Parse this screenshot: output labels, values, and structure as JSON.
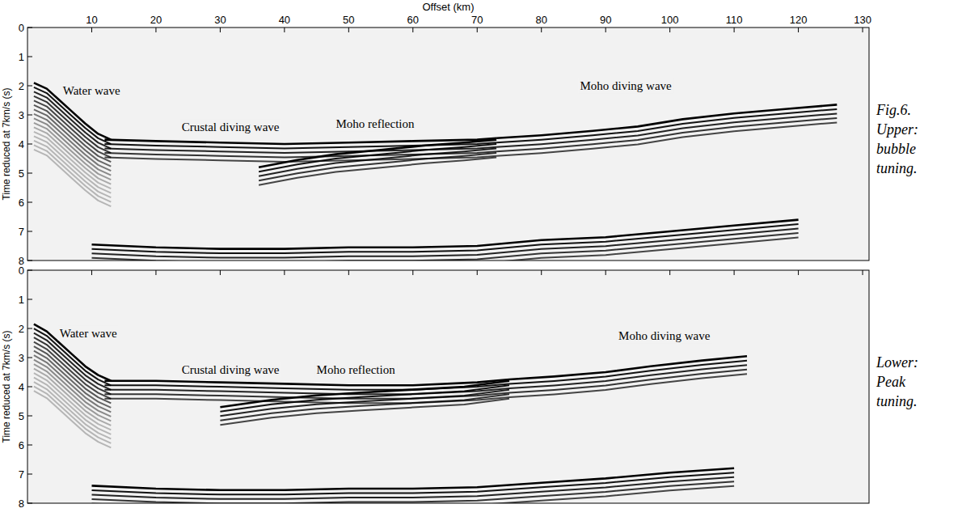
{
  "chart_data": [
    {
      "type": "line",
      "caption": [
        "Fig.6.",
        "Upper:",
        "bubble",
        "tuning."
      ],
      "xlabel": "Offset (km)",
      "ylabel": "Time reduced at 7km/s (s)",
      "xlim": [
        0,
        131
      ],
      "xticks": [
        10,
        20,
        30,
        40,
        50,
        60,
        70,
        80,
        90,
        100,
        110,
        120,
        130
      ],
      "ylim": [
        0,
        8
      ],
      "yticks": [
        0,
        1,
        2,
        3,
        4,
        5,
        6,
        7,
        8
      ],
      "color": "#000000",
      "series": [
        {
          "line_style": "dense",
          "x": [
            1,
            3,
            5,
            7,
            9,
            11,
            13
          ],
          "values": [
            1.9,
            2.1,
            2.5,
            2.9,
            3.3,
            3.65,
            3.85
          ]
        },
        {
          "line_style": "solid",
          "x": [
            12,
            20,
            30,
            40,
            50,
            60,
            70,
            73
          ],
          "values": [
            3.85,
            3.9,
            3.95,
            4.0,
            3.95,
            3.9,
            3.85,
            3.8
          ]
        },
        {
          "line_style": "solid",
          "x": [
            36,
            42,
            48,
            55,
            62,
            68,
            73
          ],
          "values": [
            4.8,
            4.55,
            4.35,
            4.2,
            4.05,
            3.95,
            3.85
          ]
        },
        {
          "line_style": "solid",
          "x": [
            73,
            80,
            88,
            95,
            102,
            110,
            118,
            126
          ],
          "values": [
            3.8,
            3.7,
            3.55,
            3.4,
            3.15,
            2.95,
            2.8,
            2.65
          ]
        },
        {
          "line_style": "solid",
          "x": [
            10,
            20,
            30,
            40,
            50,
            60,
            70,
            80,
            90,
            100,
            110,
            120
          ],
          "values": [
            7.45,
            7.55,
            7.6,
            7.6,
            7.55,
            7.55,
            7.5,
            7.3,
            7.2,
            7.0,
            6.8,
            6.6
          ]
        }
      ],
      "annotations": [
        {
          "text": "Water wave",
          "x": 5.5,
          "y": 2.3
        },
        {
          "text": "Crustal diving wave",
          "x": 24,
          "y": 3.55
        },
        {
          "text": "Moho reflection",
          "x": 48,
          "y": 3.45
        },
        {
          "text": "Moho diving wave",
          "x": 86,
          "y": 2.15
        }
      ]
    },
    {
      "type": "line",
      "caption": [
        "Lower:",
        "Peak",
        "tuning."
      ],
      "ylabel": "Time reduced at 7km/s (s)",
      "tick_labels": "y",
      "xlim": [
        0,
        131
      ],
      "xticks": [
        10,
        20,
        30,
        40,
        50,
        60,
        70,
        80,
        90,
        100,
        110,
        120,
        130
      ],
      "ylim": [
        0,
        8
      ],
      "yticks": [
        0,
        1,
        2,
        3,
        4,
        5,
        6,
        7,
        8
      ],
      "color": "#000000",
      "series": [
        {
          "line_style": "dense",
          "x": [
            1,
            3,
            5,
            7,
            9,
            11,
            13
          ],
          "values": [
            1.85,
            2.1,
            2.5,
            2.9,
            3.3,
            3.6,
            3.8
          ]
        },
        {
          "line_style": "solid",
          "x": [
            12,
            20,
            30,
            40,
            50,
            60,
            70,
            75
          ],
          "values": [
            3.8,
            3.8,
            3.85,
            3.9,
            3.95,
            3.95,
            3.85,
            3.75
          ]
        },
        {
          "line_style": "solid",
          "x": [
            30,
            38,
            45,
            52,
            60,
            68,
            75
          ],
          "values": [
            4.7,
            4.45,
            4.3,
            4.2,
            4.1,
            4.0,
            3.8
          ]
        },
        {
          "line_style": "solid",
          "x": [
            75,
            82,
            90,
            97,
            105,
            112
          ],
          "values": [
            3.75,
            3.65,
            3.5,
            3.3,
            3.1,
            2.95
          ]
        },
        {
          "line_style": "solid",
          "x": [
            10,
            20,
            30,
            40,
            50,
            60,
            70,
            80,
            90,
            100,
            110
          ],
          "values": [
            7.4,
            7.5,
            7.55,
            7.55,
            7.5,
            7.5,
            7.45,
            7.3,
            7.15,
            6.95,
            6.8
          ]
        }
      ],
      "annotations": [
        {
          "text": "Water wave",
          "x": 5,
          "y": 2.3
        },
        {
          "text": "Crustal diving wave",
          "x": 24,
          "y": 3.55
        },
        {
          "text": "Moho reflection",
          "x": 45,
          "y": 3.55
        },
        {
          "text": "Moho diving wave",
          "x": 92,
          "y": 2.4
        }
      ]
    }
  ]
}
